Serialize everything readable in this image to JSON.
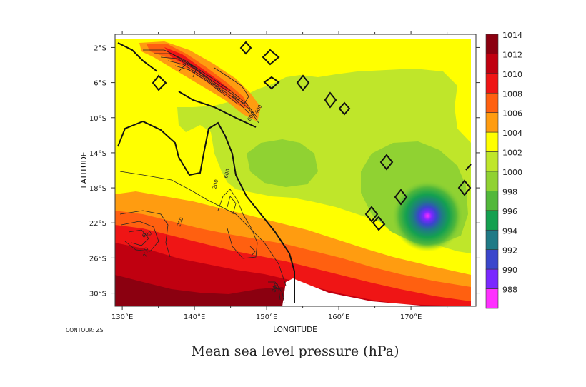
{
  "chart_data": {
    "type": "heatmap",
    "title": "Mean sea level pressure (hPa)",
    "xlabel": "LONGITUDE",
    "ylabel": "LATITUDE",
    "contour_note": "CONTOUR: ZS",
    "x_range": [
      129,
      179
    ],
    "y_range": [
      -31.5,
      -0.5
    ],
    "x_ticks": [
      "130°E",
      "140°E",
      "150°E",
      "160°E",
      "170°E"
    ],
    "x_tick_values": [
      130,
      140,
      150,
      160,
      170
    ],
    "y_ticks": [
      "2°S",
      "6°S",
      "10°S",
      "14°S",
      "18°S",
      "22°S",
      "26°S",
      "30°S"
    ],
    "y_tick_values": [
      -2,
      -6,
      -10,
      -14,
      -18,
      -22,
      -26,
      -30
    ],
    "colorbar": {
      "levels": [
        "1014",
        "1012",
        "1010",
        "1008",
        "1006",
        "1004",
        "1002",
        "1000",
        "998",
        "996",
        "994",
        "992",
        "990",
        "988"
      ],
      "colors": [
        "#8b0010",
        "#c00010",
        "#ef1515",
        "#ff6010",
        "#ff9c10",
        "#ffff00",
        "#bfe62a",
        "#90d232",
        "#52b83a",
        "#14a050",
        "#1f7a86",
        "#3a46cc",
        "#7a28ff",
        "#ff30ff"
      ]
    },
    "contour_labels": [
      "600",
      "200",
      "200",
      "600",
      "200",
      "600",
      "800",
      "400"
    ],
    "low_center": {
      "lon": 172.3,
      "lat": -21.2,
      "value": 988
    }
  }
}
